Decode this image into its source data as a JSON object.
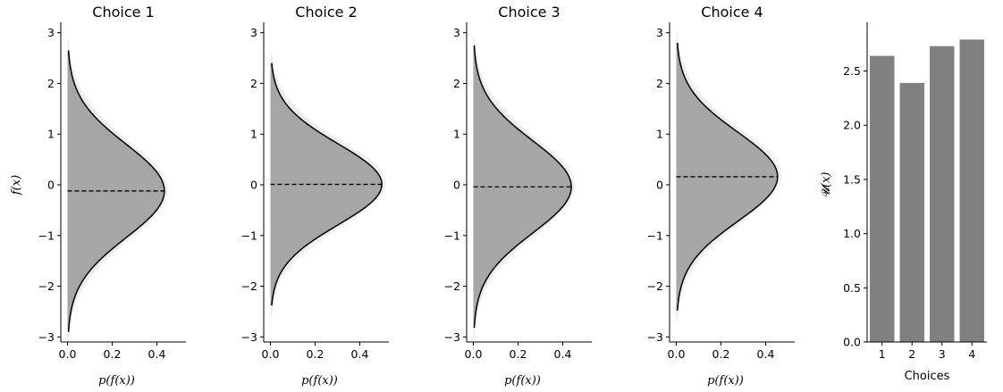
{
  "chart_data": [
    {
      "type": "area",
      "title": "Choice 1",
      "xlabel": "p(f(x))",
      "ylabel": "f(x)",
      "xlim": [
        -0.03,
        0.53
      ],
      "ylim": [
        -3.1,
        3.1
      ],
      "xticks": [
        "0.0",
        "0.2",
        "0.4"
      ],
      "yticks": [
        "−3",
        "−2",
        "−1",
        "0",
        "1",
        "2",
        "3"
      ],
      "mean": -0.12,
      "std": 0.92,
      "y_range": [
        -2.9,
        2.65
      ],
      "fill_color": "#a6a6a6",
      "shade_color": "#ebebeb"
    },
    {
      "type": "area",
      "title": "Choice 2",
      "xlabel": "p(f(x))",
      "ylabel": "",
      "xlim": [
        -0.03,
        0.53
      ],
      "ylim": [
        -3.1,
        3.1
      ],
      "xticks": [
        "0.0",
        "0.2",
        "0.4"
      ],
      "yticks": [
        "−3",
        "−2",
        "−1",
        "0",
        "1",
        "2",
        "3"
      ],
      "mean": 0.01,
      "std": 0.8,
      "y_range": [
        -2.38,
        2.4
      ],
      "fill_color": "#a6a6a6",
      "shade_color": "#ebebeb"
    },
    {
      "type": "area",
      "title": "Choice 3",
      "xlabel": "p(f(x))",
      "ylabel": "",
      "xlim": [
        -0.03,
        0.53
      ],
      "ylim": [
        -3.1,
        3.1
      ],
      "xticks": [
        "0.0",
        "0.2",
        "0.4"
      ],
      "yticks": [
        "−3",
        "−2",
        "−1",
        "0",
        "1",
        "2",
        "3"
      ],
      "mean": -0.04,
      "std": 0.91,
      "y_range": [
        -2.82,
        2.75
      ],
      "fill_color": "#a6a6a6",
      "shade_color": "#ebebeb"
    },
    {
      "type": "area",
      "title": "Choice 4",
      "xlabel": "p(f(x))",
      "ylabel": "",
      "xlim": [
        -0.03,
        0.53
      ],
      "ylim": [
        -3.1,
        3.1
      ],
      "xticks": [
        "0.0",
        "0.2",
        "0.4"
      ],
      "yticks": [
        "−3",
        "−2",
        "−1",
        "0",
        "1",
        "2",
        "3"
      ],
      "mean": 0.16,
      "std": 0.88,
      "y_range": [
        -2.48,
        2.8
      ],
      "fill_color": "#a6a6a6",
      "shade_color": "#ebebeb"
    },
    {
      "type": "bar",
      "title": "",
      "xlabel": "Choices",
      "ylabel": "𝓤(x)",
      "categories": [
        "1",
        "2",
        "3",
        "4"
      ],
      "values": [
        2.64,
        2.39,
        2.73,
        2.79
      ],
      "ylim": [
        0.0,
        2.9
      ],
      "yticks": [
        "0.0",
        "0.5",
        "1.0",
        "1.5",
        "2.0",
        "2.5"
      ],
      "bar_color": "#808080"
    }
  ]
}
